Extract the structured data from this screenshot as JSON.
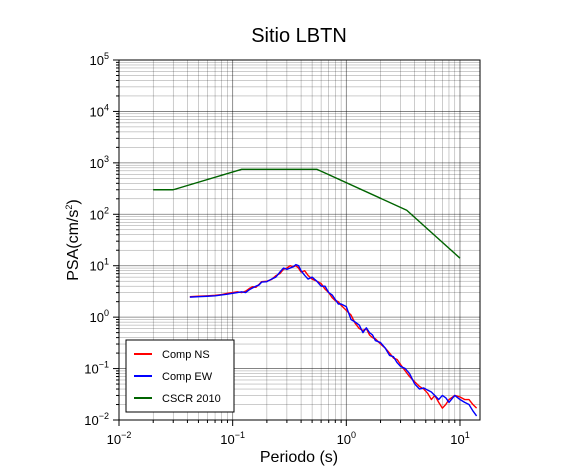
{
  "chart_data": {
    "type": "line",
    "title": "Sitio LBTN",
    "xlabel": "Periodo (s)",
    "ylabel_base": "PSA(cm/s",
    "ylabel_sup": "2",
    "ylabel_close": ")",
    "xscale": "log",
    "yscale": "log",
    "xlim": [
      0.01,
      15
    ],
    "ylim": [
      0.01,
      100000
    ],
    "grid": true,
    "legend_position": "bottom-left",
    "x_tick_labels": [
      {
        "base": "10",
        "exp": "−2"
      },
      {
        "base": "10",
        "exp": "−1"
      },
      {
        "base": "10",
        "exp": "0"
      },
      {
        "base": "10",
        "exp": "1"
      }
    ],
    "y_tick_labels": [
      {
        "base": "10",
        "exp": "−2"
      },
      {
        "base": "10",
        "exp": "−1"
      },
      {
        "base": "10",
        "exp": "0"
      },
      {
        "base": "10",
        "exp": "1"
      },
      {
        "base": "10",
        "exp": "2"
      },
      {
        "base": "10",
        "exp": "3"
      },
      {
        "base": "10",
        "exp": "4"
      },
      {
        "base": "10",
        "exp": "5"
      }
    ],
    "series": [
      {
        "name": "Comp NS",
        "color": "#ff0000",
        "x": [
          0.042,
          0.05,
          0.06,
          0.07,
          0.08,
          0.09,
          0.1,
          0.11,
          0.12,
          0.13,
          0.14,
          0.15,
          0.16,
          0.17,
          0.18,
          0.2,
          0.22,
          0.24,
          0.26,
          0.28,
          0.3,
          0.32,
          0.34,
          0.36,
          0.38,
          0.4,
          0.43,
          0.46,
          0.5,
          0.55,
          0.6,
          0.65,
          0.7,
          0.75,
          0.8,
          0.85,
          0.9,
          1.0,
          1.1,
          1.2,
          1.3,
          1.4,
          1.5,
          1.6,
          1.7,
          1.8,
          2.0,
          2.2,
          2.4,
          2.6,
          2.8,
          3.0,
          3.3,
          3.6,
          4.0,
          4.4,
          4.8,
          5.2,
          5.6,
          6.0,
          6.5,
          7.0,
          7.5,
          8.0,
          9.0,
          10.0,
          11.0,
          12.0,
          13.0,
          14.0
        ],
        "y": [
          2.5,
          2.55,
          2.6,
          2.65,
          2.75,
          2.9,
          3.0,
          3.1,
          3.0,
          3.2,
          3.6,
          3.9,
          3.8,
          4.3,
          4.9,
          5.0,
          5.4,
          6.4,
          7.0,
          8.5,
          9.0,
          10.0,
          9.5,
          10.0,
          9.0,
          7.5,
          8.0,
          6.5,
          5.5,
          5.0,
          4.5,
          3.5,
          3.0,
          2.4,
          2.1,
          2.0,
          1.7,
          1.35,
          1.1,
          0.75,
          0.6,
          0.55,
          0.6,
          0.45,
          0.4,
          0.38,
          0.3,
          0.25,
          0.2,
          0.16,
          0.15,
          0.12,
          0.09,
          0.07,
          0.055,
          0.045,
          0.04,
          0.033,
          0.025,
          0.03,
          0.022,
          0.017,
          0.02,
          0.025,
          0.03,
          0.028,
          0.025,
          0.025,
          0.02,
          0.017
        ]
      },
      {
        "name": "Comp EW",
        "color": "#0000ff",
        "x": [
          0.042,
          0.05,
          0.06,
          0.07,
          0.08,
          0.09,
          0.1,
          0.11,
          0.12,
          0.13,
          0.14,
          0.15,
          0.16,
          0.17,
          0.18,
          0.2,
          0.22,
          0.24,
          0.26,
          0.28,
          0.3,
          0.32,
          0.34,
          0.36,
          0.38,
          0.4,
          0.43,
          0.46,
          0.5,
          0.55,
          0.6,
          0.65,
          0.7,
          0.75,
          0.8,
          0.85,
          0.9,
          1.0,
          1.1,
          1.2,
          1.3,
          1.4,
          1.5,
          1.6,
          1.7,
          1.8,
          2.0,
          2.2,
          2.4,
          2.6,
          2.8,
          3.0,
          3.3,
          3.6,
          4.0,
          4.4,
          4.8,
          5.2,
          5.6,
          6.0,
          6.5,
          7.0,
          7.5,
          8.0,
          9.0,
          10.0,
          11.0,
          12.0,
          13.0,
          14.0
        ],
        "y": [
          2.45,
          2.5,
          2.55,
          2.6,
          2.7,
          2.8,
          2.9,
          3.0,
          3.1,
          3.0,
          3.4,
          3.7,
          4.0,
          4.2,
          4.8,
          4.9,
          5.5,
          6.0,
          7.5,
          9.0,
          8.5,
          9.0,
          9.5,
          10.5,
          10.0,
          8.0,
          6.5,
          5.5,
          6.0,
          5.0,
          4.0,
          4.0,
          3.0,
          2.7,
          2.2,
          1.8,
          1.8,
          1.6,
          0.9,
          0.8,
          0.7,
          0.5,
          0.62,
          0.5,
          0.45,
          0.35,
          0.32,
          0.25,
          0.18,
          0.17,
          0.13,
          0.11,
          0.1,
          0.08,
          0.05,
          0.04,
          0.042,
          0.038,
          0.035,
          0.03,
          0.025,
          0.03,
          0.027,
          0.022,
          0.03,
          0.025,
          0.022,
          0.02,
          0.015,
          0.012
        ]
      },
      {
        "name": "CSCR 2010",
        "color": "#006400",
        "x": [
          0.02,
          0.03,
          0.12,
          0.55,
          3.4,
          10.0
        ],
        "y": [
          300,
          300,
          750,
          750,
          120,
          14
        ]
      }
    ]
  }
}
